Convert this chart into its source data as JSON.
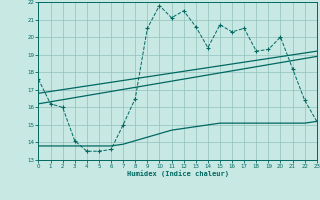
{
  "xlabel": "Humidex (Indice chaleur)",
  "bg_color": "#c8e8e4",
  "grid_color": "#90c0bc",
  "line_color": "#006860",
  "xlim": [
    0,
    23
  ],
  "ylim": [
    13,
    22
  ],
  "xticks": [
    0,
    1,
    2,
    3,
    4,
    5,
    6,
    7,
    8,
    9,
    10,
    11,
    12,
    13,
    14,
    15,
    16,
    17,
    18,
    19,
    20,
    21,
    22,
    23
  ],
  "yticks": [
    13,
    14,
    15,
    16,
    17,
    18,
    19,
    20,
    21,
    22
  ],
  "line1_x": [
    0,
    1,
    2,
    3,
    4,
    5,
    6,
    7,
    8,
    9,
    10,
    11,
    12,
    13,
    14,
    15,
    16,
    17,
    18,
    19,
    20,
    21,
    22,
    23
  ],
  "line1_y": [
    17.6,
    16.2,
    16.0,
    14.1,
    13.5,
    13.5,
    13.6,
    15.0,
    16.5,
    20.5,
    21.8,
    21.1,
    21.5,
    20.6,
    19.4,
    20.7,
    20.3,
    20.5,
    19.2,
    19.3,
    20.0,
    18.2,
    16.4,
    15.2
  ],
  "line2_x": [
    0,
    23
  ],
  "line2_y": [
    16.8,
    19.2
  ],
  "line3_x": [
    0,
    23
  ],
  "line3_y": [
    16.2,
    18.9
  ],
  "line4_x": [
    0,
    1,
    2,
    3,
    4,
    5,
    6,
    7,
    8,
    9,
    10,
    11,
    12,
    13,
    14,
    15,
    16,
    17,
    18,
    19,
    20,
    21,
    22,
    23
  ],
  "line4_y": [
    13.8,
    13.8,
    13.8,
    13.8,
    13.8,
    13.8,
    13.8,
    13.9,
    14.1,
    14.3,
    14.5,
    14.7,
    14.8,
    14.9,
    15.0,
    15.1,
    15.1,
    15.1,
    15.1,
    15.1,
    15.1,
    15.1,
    15.1,
    15.2
  ]
}
